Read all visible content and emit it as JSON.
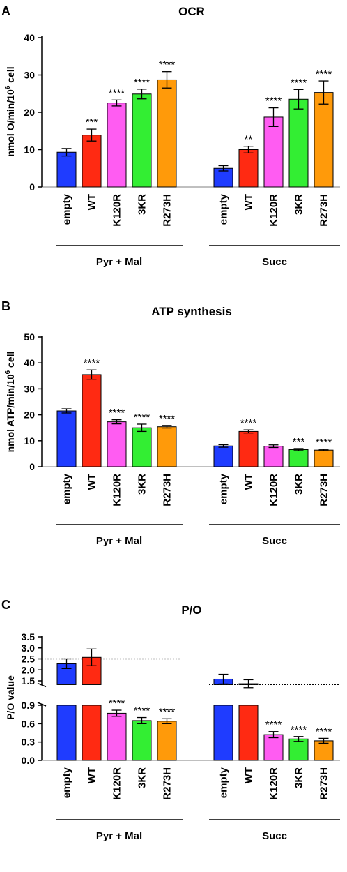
{
  "colors": {
    "empty": "#1f3cff",
    "WT": "#ff2a12",
    "K120R": "#ff5cf2",
    "3KR": "#33ee33",
    "R273H": "#ff9a0a"
  },
  "chart_data": [
    {
      "type": "bar",
      "panel_label": "A",
      "title": "OCR",
      "ylabel": "nmol O/min/10⁶ cell",
      "ylim": [
        0,
        40
      ],
      "yticks": [
        "0",
        "10",
        "20",
        "30",
        "40"
      ],
      "categories": [
        "empty",
        "WT",
        "K120R",
        "3KR",
        "R273H"
      ],
      "groups": [
        {
          "name": "Pyr + Mal",
          "values": [
            9.3,
            13.9,
            22.5,
            24.9,
            28.7
          ],
          "errors": [
            1.0,
            1.6,
            0.8,
            1.3,
            2.2
          ],
          "significance": [
            "",
            "***",
            "****",
            "****",
            "****"
          ]
        },
        {
          "name": "Succ",
          "values": [
            5.0,
            10.0,
            18.7,
            23.5,
            25.3
          ],
          "errors": [
            0.7,
            0.9,
            2.5,
            2.6,
            3.1
          ],
          "significance": [
            "",
            "**",
            "****",
            "****",
            "****"
          ]
        }
      ]
    },
    {
      "type": "bar",
      "panel_label": "B",
      "title": "ATP synthesis",
      "ylabel": "nmol ATP/min/10⁶ cell",
      "ylim": [
        0,
        50
      ],
      "yticks": [
        "0",
        "10",
        "20",
        "30",
        "40",
        "50"
      ],
      "categories": [
        "empty",
        "WT",
        "K120R",
        "3KR",
        "R273H"
      ],
      "groups": [
        {
          "name": "Pyr + Mal",
          "values": [
            21.5,
            35.5,
            17.3,
            15.0,
            15.4
          ],
          "errors": [
            0.8,
            1.8,
            0.8,
            1.4,
            0.5
          ],
          "significance": [
            "",
            "****",
            "****",
            "****",
            "****"
          ]
        },
        {
          "name": "Succ",
          "values": [
            8.0,
            13.6,
            7.9,
            6.6,
            6.4
          ],
          "errors": [
            0.5,
            0.6,
            0.5,
            0.4,
            0.3
          ],
          "significance": [
            "",
            "****",
            "",
            "***",
            "****"
          ]
        }
      ]
    },
    {
      "type": "bar",
      "panel_label": "C",
      "title": "P/O",
      "ylabel": "P/O value",
      "axis_break": {
        "lower_ylim": [
          0,
          0.9
        ],
        "upper_ylim": [
          1.2,
          3.5
        ]
      },
      "yticks_lower": [
        "0.0",
        "0.3",
        "0.6",
        "0.9"
      ],
      "yticks_upper": [
        "1.5",
        "2.0",
        "2.5",
        "3.0",
        "3.5"
      ],
      "reference_lines": [
        2.5,
        1.33
      ],
      "categories": [
        "empty",
        "WT",
        "K120R",
        "3KR",
        "R273H"
      ],
      "groups": [
        {
          "name": "Pyr + Mal",
          "values": [
            2.28,
            2.57,
            0.77,
            0.65,
            0.64
          ],
          "errors": [
            0.22,
            0.38,
            0.05,
            0.05,
            0.04
          ],
          "significance": [
            "",
            "",
            "****",
            "****",
            "****"
          ]
        },
        {
          "name": "Succ",
          "values": [
            1.58,
            1.37,
            0.42,
            0.35,
            0.32
          ],
          "errors": [
            0.22,
            0.18,
            0.05,
            0.04,
            0.04
          ],
          "significance": [
            "",
            "",
            "****",
            "****",
            "****"
          ]
        }
      ]
    }
  ]
}
